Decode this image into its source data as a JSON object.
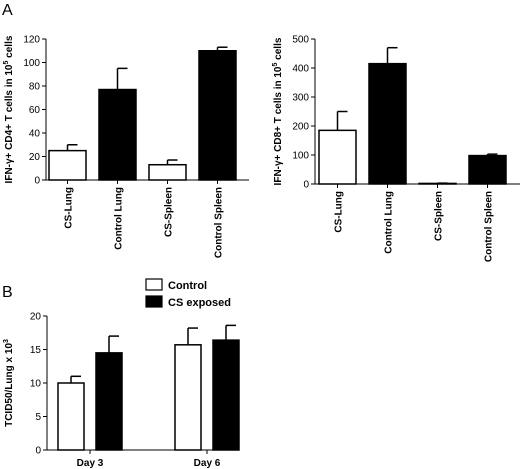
{
  "panel_labels": {
    "a": "A",
    "b": "B"
  },
  "chart_data": [
    {
      "id": "A-left",
      "type": "bar",
      "ylabel_parts": [
        "IFN-γ+ CD4+ T cells in 10",
        "5",
        " cells"
      ],
      "ylim": [
        0,
        120
      ],
      "yticks": [
        "0",
        "20",
        "40",
        "60",
        "80",
        "100",
        "120"
      ],
      "categories": [
        "CS-Lung",
        "Control Lung",
        "CS-Spleen",
        "Control Spleen"
      ],
      "values": [
        25,
        77,
        13,
        110
      ],
      "errors": [
        5,
        18,
        4,
        3
      ],
      "fills": [
        "#ffffff",
        "#000000",
        "#ffffff",
        "#000000"
      ]
    },
    {
      "id": "A-right",
      "type": "bar",
      "ylabel_parts": [
        "IFN-γ+ CD8+ T cells in 10",
        "5",
        " cells"
      ],
      "ylim": [
        0,
        500
      ],
      "yticks": [
        "0",
        "100",
        "200",
        "300",
        "400",
        "500"
      ],
      "categories": [
        "CS-Lung",
        "Control Lung",
        "CS-Spleen",
        "Control Spleen"
      ],
      "values": [
        185,
        415,
        2,
        98
      ],
      "errors": [
        65,
        55,
        1,
        5
      ],
      "fills": [
        "#ffffff",
        "#000000",
        "#ffffff",
        "#000000"
      ]
    },
    {
      "id": "B",
      "type": "bar",
      "ylabel_parts": [
        "TCID50/Lung x 10",
        "3",
        ""
      ],
      "ylim": [
        0,
        20
      ],
      "yticks": [
        "0",
        "5",
        "10",
        "15",
        "20"
      ],
      "categories": [
        "Day 3",
        "Day 6"
      ],
      "series": [
        {
          "name": "Control",
          "values": [
            10.0,
            15.7
          ],
          "errors": [
            1.0,
            2.5
          ],
          "color": "#ffffff"
        },
        {
          "name": "CS exposed",
          "values": [
            14.5,
            16.4
          ],
          "errors": [
            2.5,
            2.2
          ],
          "color": "#000000"
        }
      ],
      "legend": "top-left"
    }
  ]
}
